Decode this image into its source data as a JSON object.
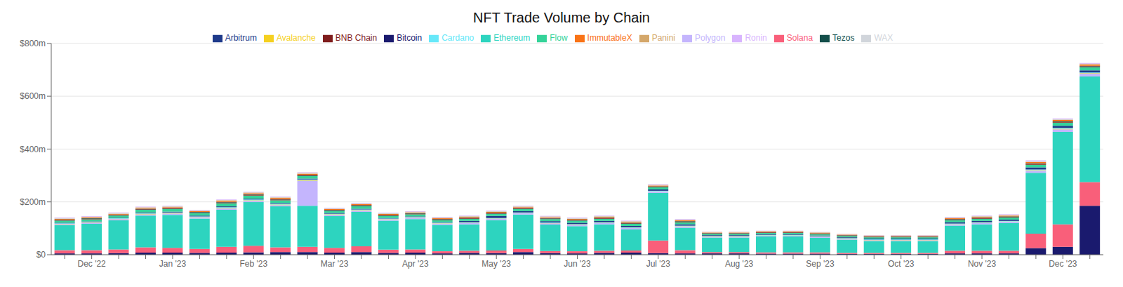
{
  "chart_data": {
    "type": "bar",
    "title": "NFT Trade Volume by Chain",
    "stacked": true,
    "grid": true,
    "legend": "top",
    "categories": [
      null,
      "Dec '22",
      null,
      null,
      "Jan '23",
      null,
      null,
      "Feb '23",
      null,
      null,
      "Mar '23",
      null,
      null,
      "Apr '23",
      null,
      null,
      "May '23",
      null,
      null,
      "Jun '23",
      null,
      null,
      "Jul '23",
      null,
      null,
      "Aug '23",
      null,
      null,
      "Sep '23",
      null,
      null,
      "Oct '23",
      null,
      null,
      "Nov '23",
      null,
      null,
      "Dec '23",
      null
    ],
    "ylim": [
      0,
      800
    ],
    "yticks": [
      {
        "value": 0,
        "label": "$0"
      },
      {
        "value": 200,
        "label": "$200m"
      },
      {
        "value": 400,
        "label": "$400m"
      },
      {
        "value": 600,
        "label": "$600m"
      },
      {
        "value": 800,
        "label": "$800m"
      }
    ],
    "series": [
      {
        "name": "Bitcoin",
        "color": "#1a1a6e",
        "values": [
          5,
          5,
          6,
          8,
          8,
          7,
          8,
          9,
          10,
          10,
          8,
          10,
          7,
          8,
          5,
          7,
          6,
          10,
          6,
          5,
          7,
          8,
          6,
          5,
          5,
          5,
          4,
          4,
          4,
          3,
          3,
          3,
          3,
          5,
          5,
          5,
          25,
          30,
          185
        ]
      },
      {
        "name": "Solana",
        "color": "#f95f7a",
        "values": [
          12,
          12,
          14,
          20,
          18,
          15,
          22,
          25,
          18,
          20,
          18,
          22,
          12,
          12,
          8,
          8,
          10,
          12,
          8,
          8,
          8,
          8,
          48,
          12,
          5,
          5,
          5,
          5,
          5,
          4,
          4,
          4,
          4,
          10,
          10,
          10,
          55,
          85,
          90
        ]
      },
      {
        "name": "Ethereum",
        "color": "#2dd4bf",
        "values": [
          95,
          100,
          110,
          120,
          125,
          115,
          140,
          165,
          155,
          155,
          120,
          130,
          110,
          115,
          100,
          100,
          115,
          130,
          100,
          95,
          100,
          80,
          180,
          85,
          55,
          55,
          60,
          60,
          55,
          50,
          45,
          45,
          45,
          95,
          100,
          105,
          230,
          350,
          400
        ]
      },
      {
        "name": "Polygon",
        "color": "#c4b5fd",
        "values": [
          4,
          4,
          5,
          5,
          5,
          5,
          5,
          5,
          5,
          95,
          5,
          5,
          5,
          5,
          5,
          5,
          5,
          5,
          5,
          5,
          5,
          5,
          5,
          5,
          3,
          3,
          3,
          3,
          3,
          3,
          3,
          3,
          3,
          5,
          5,
          5,
          8,
          10,
          10
        ]
      },
      {
        "name": "Avalanche",
        "color": "#f5d020",
        "values": [
          1,
          1,
          1,
          2,
          2,
          1,
          2,
          2,
          2,
          2,
          2,
          2,
          1,
          1,
          1,
          1,
          1,
          1,
          1,
          1,
          1,
          1,
          1,
          1,
          1,
          1,
          1,
          1,
          1,
          1,
          1,
          1,
          1,
          1,
          1,
          1,
          2,
          2,
          2
        ]
      },
      {
        "name": "Cardano",
        "color": "#67e8f9",
        "values": [
          2,
          2,
          2,
          2,
          2,
          2,
          3,
          3,
          3,
          3,
          2,
          2,
          2,
          2,
          2,
          2,
          2,
          2,
          2,
          2,
          2,
          2,
          2,
          2,
          2,
          2,
          2,
          2,
          2,
          2,
          2,
          2,
          2,
          2,
          2,
          2,
          3,
          3,
          3
        ]
      },
      {
        "name": "Arbitrum",
        "color": "#1e3a8a",
        "values": [
          2,
          2,
          2,
          3,
          3,
          3,
          3,
          3,
          3,
          3,
          3,
          3,
          2,
          2,
          2,
          5,
          8,
          5,
          5,
          5,
          5,
          5,
          5,
          5,
          3,
          3,
          3,
          3,
          3,
          3,
          3,
          3,
          3,
          5,
          5,
          5,
          8,
          8,
          8
        ]
      },
      {
        "name": "Flow",
        "color": "#34d399",
        "values": [
          8,
          8,
          8,
          10,
          10,
          10,
          12,
          12,
          10,
          10,
          8,
          10,
          8,
          8,
          8,
          8,
          8,
          8,
          8,
          8,
          8,
          8,
          8,
          8,
          5,
          5,
          5,
          5,
          5,
          5,
          5,
          5,
          5,
          8,
          8,
          8,
          10,
          12,
          12
        ]
      },
      {
        "name": "BNB Chain",
        "color": "#7f1d1d",
        "values": [
          2,
          2,
          2,
          2,
          2,
          2,
          3,
          3,
          3,
          3,
          2,
          2,
          2,
          2,
          2,
          2,
          2,
          2,
          2,
          2,
          2,
          2,
          2,
          2,
          2,
          2,
          2,
          2,
          2,
          2,
          2,
          2,
          2,
          2,
          2,
          2,
          3,
          3,
          3
        ]
      },
      {
        "name": "Tezos",
        "color": "#134e4a",
        "values": [
          2,
          2,
          2,
          2,
          2,
          2,
          2,
          2,
          2,
          2,
          2,
          2,
          2,
          2,
          2,
          2,
          2,
          2,
          2,
          2,
          2,
          2,
          2,
          2,
          1,
          1,
          1,
          1,
          1,
          1,
          1,
          1,
          1,
          2,
          2,
          2,
          2,
          2,
          2
        ]
      },
      {
        "name": "ImmutableX",
        "color": "#f97316",
        "values": [
          3,
          3,
          3,
          3,
          3,
          3,
          4,
          4,
          4,
          4,
          3,
          3,
          3,
          3,
          3,
          3,
          3,
          3,
          3,
          3,
          3,
          3,
          3,
          3,
          2,
          2,
          2,
          2,
          2,
          2,
          2,
          2,
          2,
          3,
          3,
          3,
          5,
          5,
          5
        ]
      },
      {
        "name": "WAX",
        "color": "#d1d5db",
        "values": [
          2,
          2,
          2,
          2,
          2,
          2,
          2,
          2,
          2,
          2,
          2,
          2,
          2,
          2,
          2,
          2,
          2,
          2,
          2,
          2,
          2,
          2,
          2,
          2,
          1,
          1,
          1,
          1,
          1,
          1,
          1,
          1,
          1,
          2,
          2,
          2,
          2,
          2,
          2
        ]
      },
      {
        "name": "Panini",
        "color": "#d4a76a",
        "values": [
          1,
          1,
          1,
          1,
          1,
          1,
          1,
          1,
          1,
          1,
          1,
          1,
          1,
          1,
          1,
          1,
          1,
          1,
          1,
          1,
          1,
          1,
          1,
          1,
          1,
          1,
          1,
          1,
          1,
          1,
          1,
          1,
          1,
          1,
          1,
          1,
          1,
          1,
          1
        ]
      },
      {
        "name": "Ronin",
        "color": "#d8b4fe",
        "values": [
          2,
          2,
          2,
          2,
          2,
          2,
          2,
          2,
          2,
          2,
          2,
          2,
          2,
          2,
          2,
          2,
          2,
          2,
          2,
          2,
          2,
          2,
          2,
          2,
          1,
          1,
          1,
          1,
          1,
          1,
          1,
          1,
          1,
          2,
          2,
          2,
          3,
          3,
          3
        ]
      }
    ]
  }
}
